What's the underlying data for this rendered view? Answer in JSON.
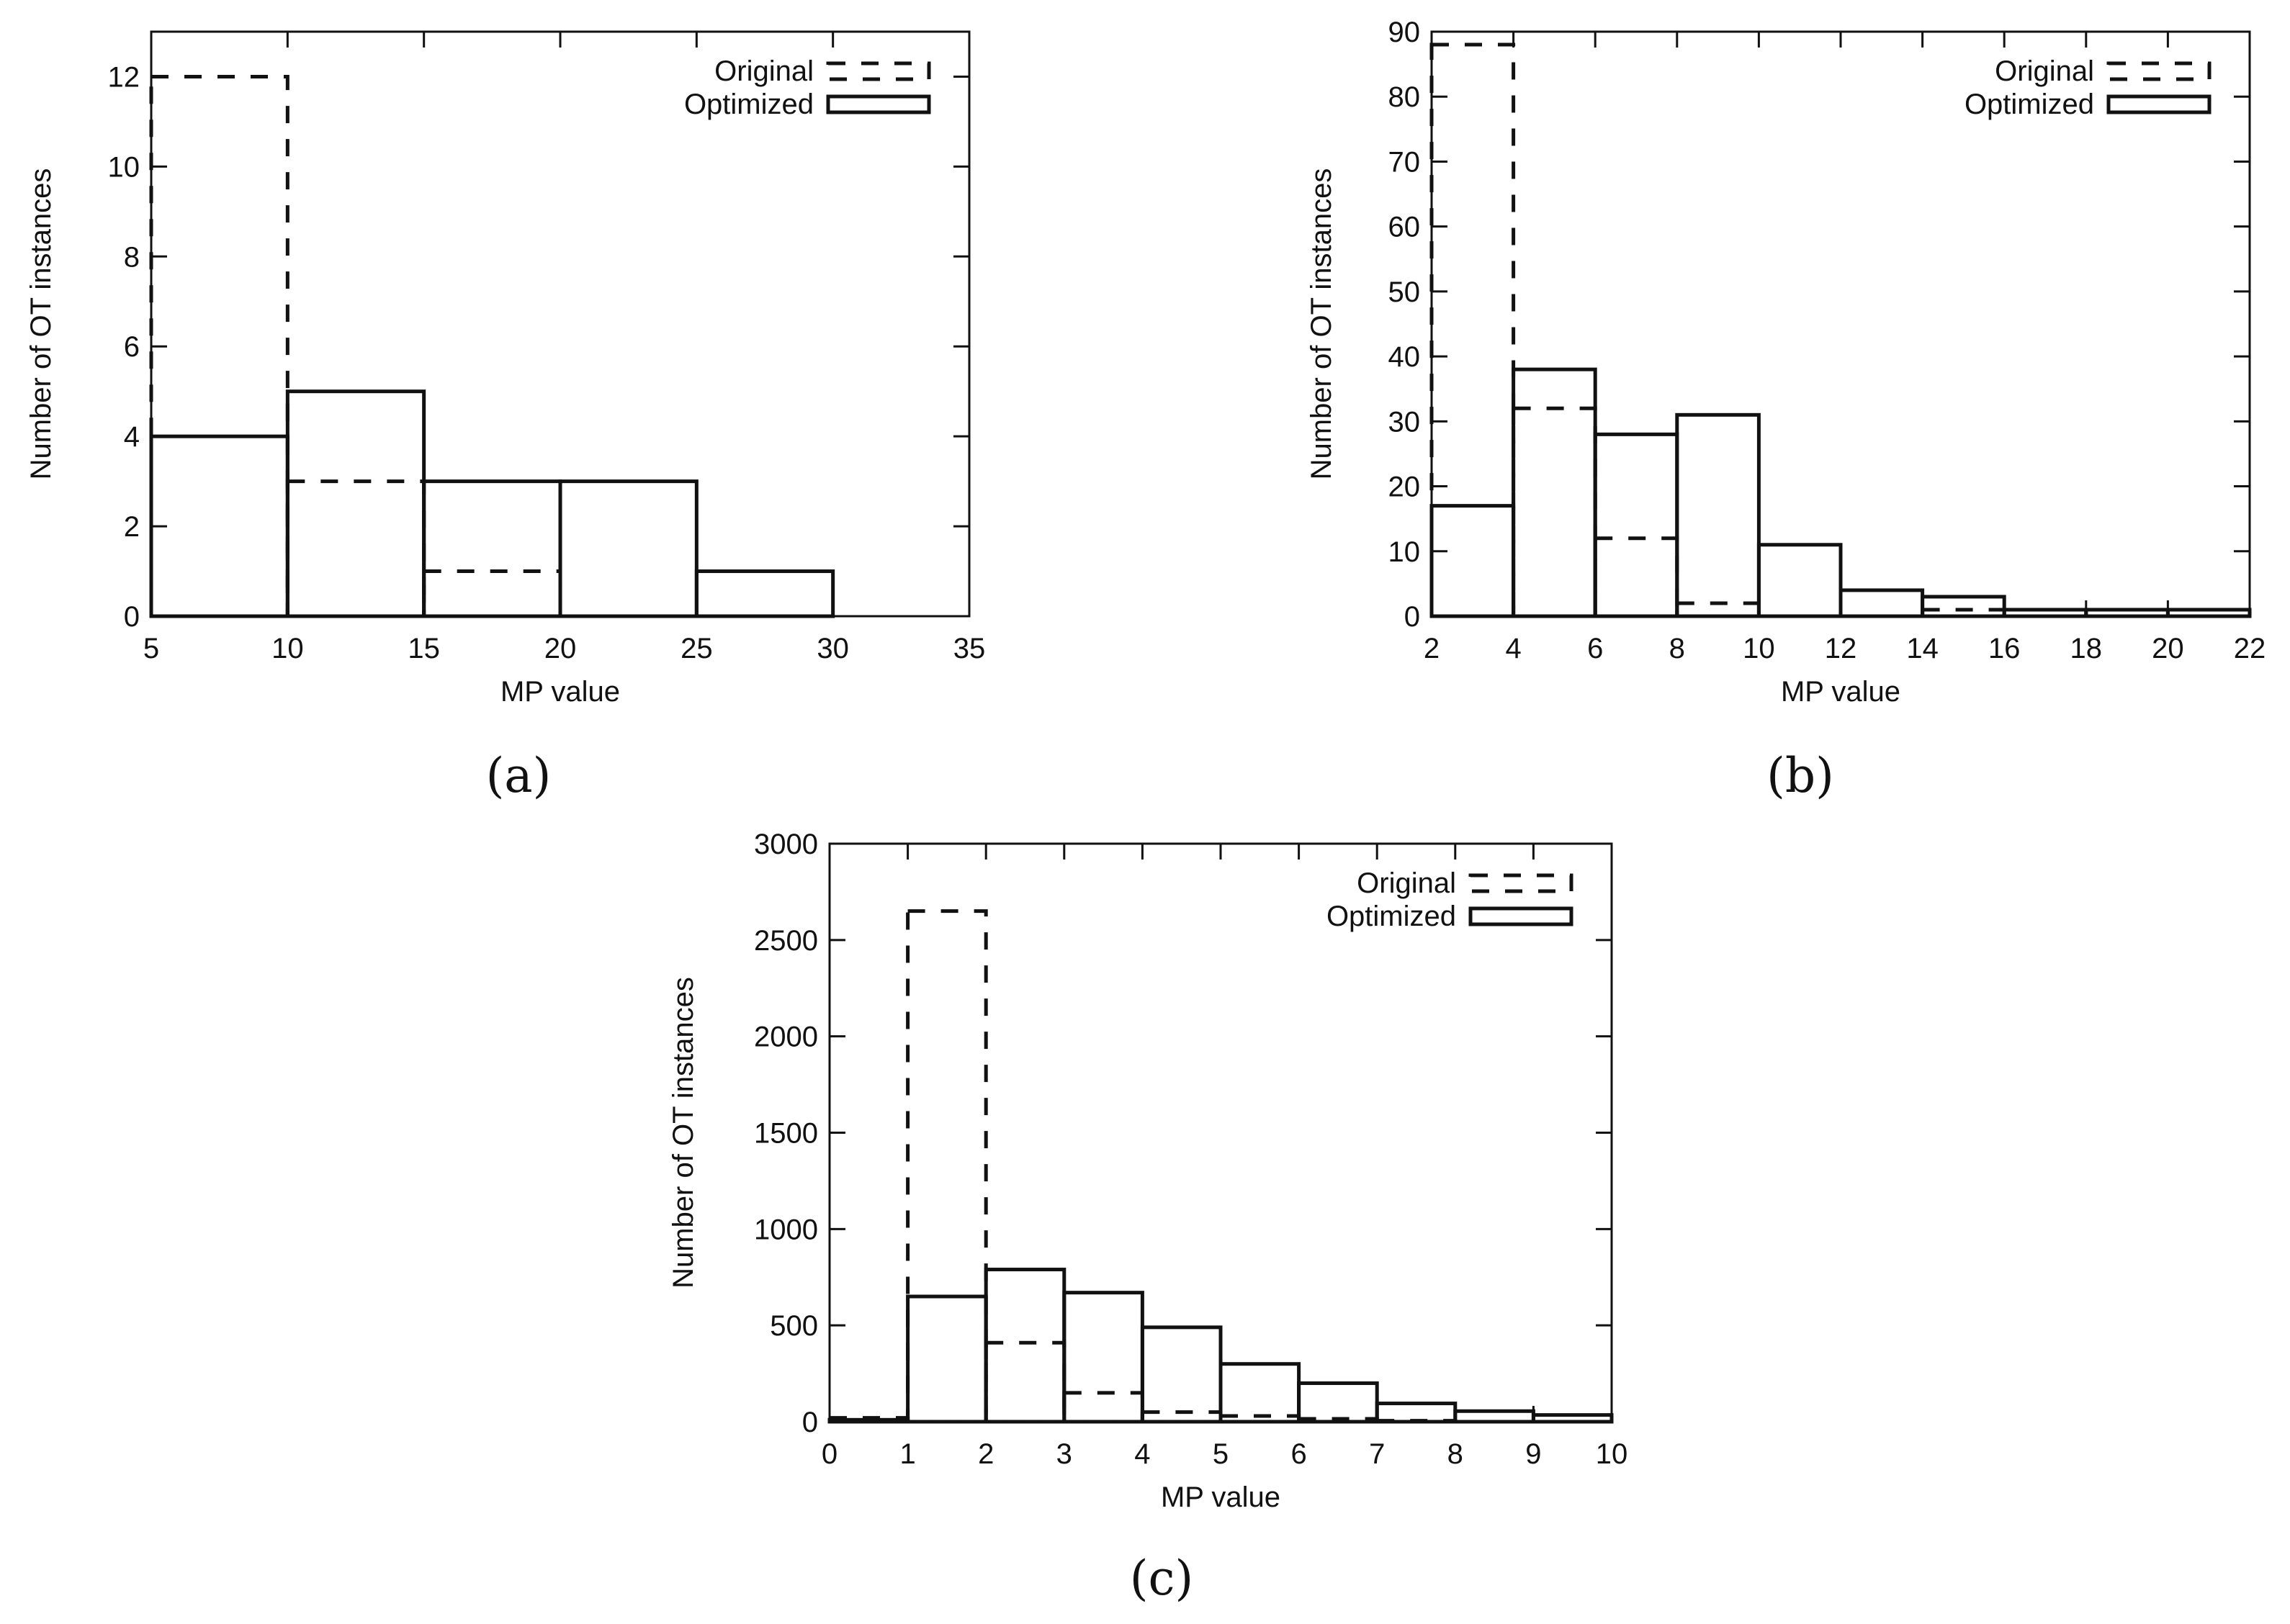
{
  "panels": [
    {
      "id": "a",
      "caption": "(a)"
    },
    {
      "id": "b",
      "caption": "(b)"
    },
    {
      "id": "c",
      "caption": "(c)"
    }
  ],
  "chart_data": [
    {
      "type": "bar",
      "panel": "(a)",
      "xlabel": "MP value",
      "ylabel": "Number of OT instances",
      "xlim": [
        5,
        35
      ],
      "ylim": [
        0,
        13
      ],
      "xticks": [
        5,
        10,
        15,
        20,
        25,
        30,
        35
      ],
      "yticks": [
        0,
        2,
        4,
        6,
        8,
        10,
        12
      ],
      "grid": false,
      "legend_position": "top-right",
      "bin_edges": [
        5,
        10,
        15,
        20,
        25,
        30
      ],
      "series": [
        {
          "name": "Original",
          "style": "dashed",
          "values": [
            12,
            3,
            1,
            0,
            0
          ]
        },
        {
          "name": "Optimized",
          "style": "solid",
          "values": [
            4,
            5,
            3,
            3,
            1
          ]
        }
      ]
    },
    {
      "type": "bar",
      "panel": "(b)",
      "xlabel": "MP value",
      "ylabel": "Number of OT instances",
      "xlim": [
        2,
        22
      ],
      "ylim": [
        0,
        90
      ],
      "xticks": [
        2,
        4,
        6,
        8,
        10,
        12,
        14,
        16,
        18,
        20,
        22
      ],
      "yticks": [
        0,
        10,
        20,
        30,
        40,
        50,
        60,
        70,
        80,
        90
      ],
      "grid": false,
      "legend_position": "top-right",
      "bin_edges": [
        2,
        4,
        6,
        8,
        10,
        12,
        14,
        16,
        18,
        20,
        22
      ],
      "series": [
        {
          "name": "Original",
          "style": "dashed",
          "values": [
            88,
            32,
            12,
            2,
            0,
            0,
            1,
            0,
            0,
            0
          ]
        },
        {
          "name": "Optimized",
          "style": "solid",
          "values": [
            17,
            38,
            28,
            31,
            11,
            4,
            3,
            1,
            1,
            1
          ]
        }
      ]
    },
    {
      "type": "bar",
      "panel": "(c)",
      "xlabel": "MP value",
      "ylabel": "Number of OT instances",
      "xlim": [
        0,
        10
      ],
      "ylim": [
        0,
        3000
      ],
      "xticks": [
        0,
        1,
        2,
        3,
        4,
        5,
        6,
        7,
        8,
        9,
        10
      ],
      "yticks": [
        0,
        500,
        1000,
        1500,
        2000,
        2500,
        3000
      ],
      "grid": false,
      "legend_position": "top-right",
      "bin_edges": [
        0,
        1,
        2,
        3,
        4,
        5,
        6,
        7,
        8,
        9,
        10
      ],
      "series": [
        {
          "name": "Original",
          "style": "dashed",
          "values": [
            20,
            2650,
            410,
            150,
            50,
            30,
            15,
            5,
            0,
            0
          ]
        },
        {
          "name": "Optimized",
          "style": "solid",
          "values": [
            10,
            650,
            790,
            670,
            490,
            300,
            200,
            95,
            55,
            35
          ]
        }
      ]
    }
  ]
}
